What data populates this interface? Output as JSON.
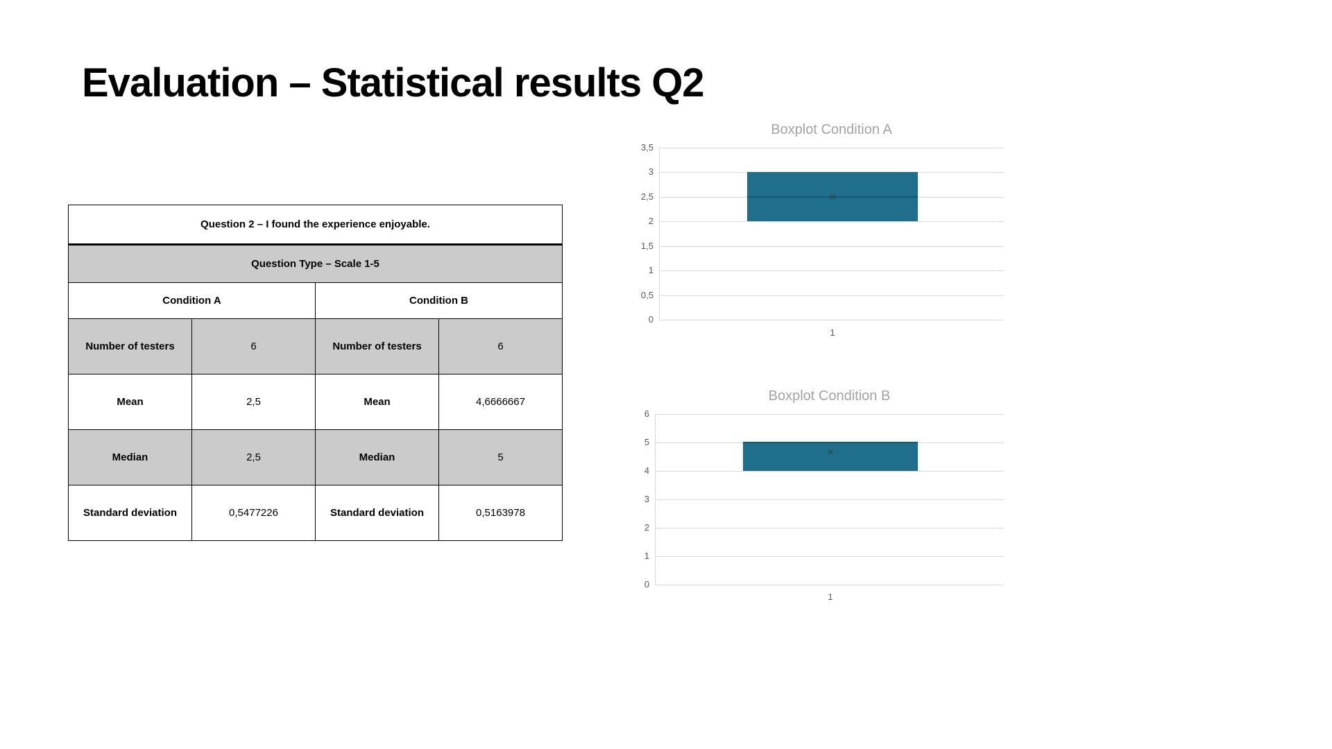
{
  "title": "Evaluation – Statistical results Q2",
  "table": {
    "question": "Question 2 – I found the experience enjoyable.",
    "question_type": "Question Type – Scale 1-5",
    "condition_a_header": "Condition A",
    "condition_b_header": "Condition B",
    "rows": [
      {
        "label_a": "Number of testers",
        "value_a": "6",
        "label_b": "Number of testers",
        "value_b": "6"
      },
      {
        "label_a": "Mean",
        "value_a": "2,5",
        "label_b": "Mean",
        "value_b": "4,6666667"
      },
      {
        "label_a": "Median",
        "value_a": "2,5",
        "label_b": "Median",
        "value_b": "5"
      },
      {
        "label_a": "Standard deviation",
        "value_a": "0,5477226",
        "label_b": "Standard deviation",
        "value_b": "0,5163978"
      }
    ]
  },
  "chart_data": [
    {
      "type": "boxplot",
      "title": "Boxplot Condition A",
      "x_categories": [
        "1"
      ],
      "ylim": [
        0,
        3.5
      ],
      "y_ticks": [
        {
          "label": "3,5",
          "value": 3.5
        },
        {
          "label": "3",
          "value": 3
        },
        {
          "label": "2,5",
          "value": 2.5
        },
        {
          "label": "2",
          "value": 2
        },
        {
          "label": "1,5",
          "value": 1.5
        },
        {
          "label": "1",
          "value": 1
        },
        {
          "label": "0,5",
          "value": 0.5
        },
        {
          "label": "0",
          "value": 0
        }
      ],
      "box": {
        "lower": 2,
        "upper": 3,
        "median": 2.5,
        "mean": 2.5
      },
      "grid": true,
      "legend": "none",
      "box_color": "#1F6E8C",
      "median_color": "#16576F"
    },
    {
      "type": "boxplot",
      "title": "Boxplot Condition B",
      "x_categories": [
        "1"
      ],
      "ylim": [
        0,
        6
      ],
      "y_ticks": [
        {
          "label": "6",
          "value": 6
        },
        {
          "label": "5",
          "value": 5
        },
        {
          "label": "4",
          "value": 4
        },
        {
          "label": "3",
          "value": 3
        },
        {
          "label": "2",
          "value": 2
        },
        {
          "label": "1",
          "value": 1
        },
        {
          "label": "0",
          "value": 0
        }
      ],
      "box": {
        "lower": 4,
        "upper": 5,
        "median": 5,
        "mean": 4.6666667
      },
      "grid": true,
      "legend": "none",
      "box_color": "#1F6E8C",
      "median_color": "#16576F"
    }
  ],
  "icons": {
    "mean_marker": "×"
  }
}
